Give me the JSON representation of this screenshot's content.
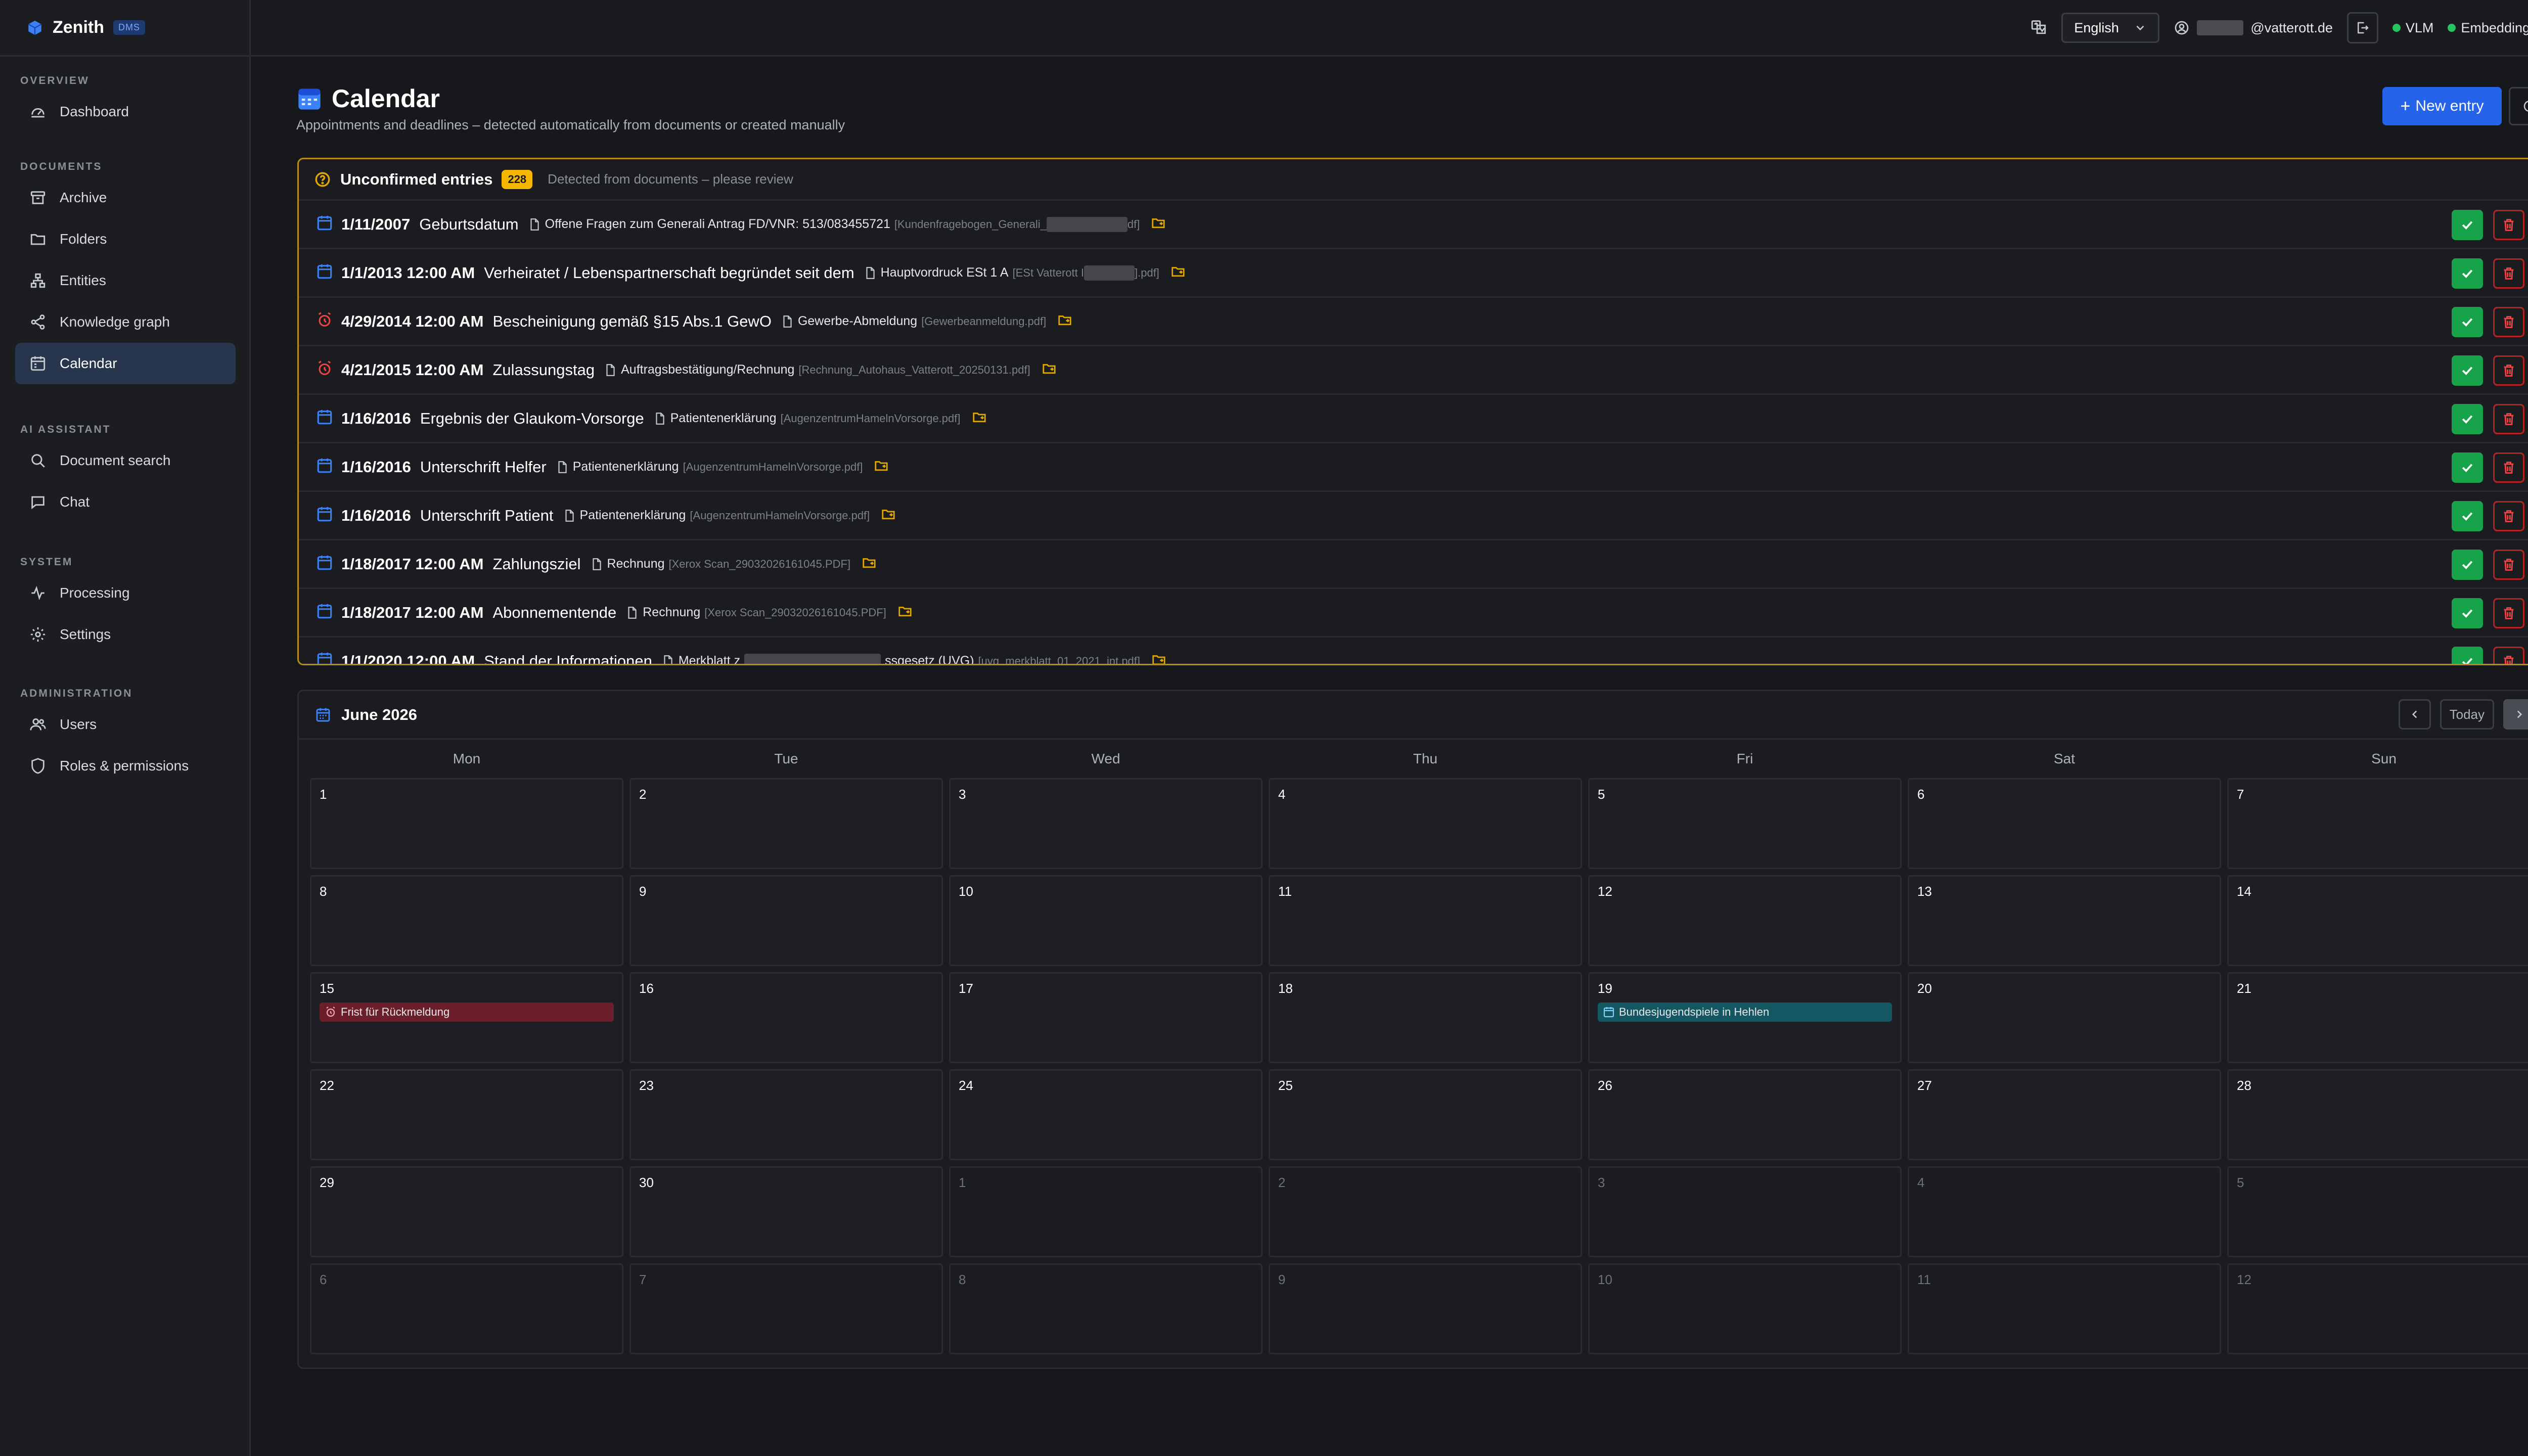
{
  "brand": {
    "name": "Zenith",
    "tag": "DMS"
  },
  "sidebar": {
    "sections": [
      {
        "heading": "OVERVIEW",
        "items": [
          {
            "label": "Dashboard",
            "icon": "dashboard-icon"
          }
        ]
      },
      {
        "heading": "DOCUMENTS",
        "items": [
          {
            "label": "Archive",
            "icon": "archive-icon"
          },
          {
            "label": "Folders",
            "icon": "folder-icon"
          },
          {
            "label": "Entities",
            "icon": "entities-icon"
          },
          {
            "label": "Knowledge graph",
            "icon": "share-icon"
          },
          {
            "label": "Calendar",
            "icon": "calendar-icon",
            "active": true
          }
        ]
      },
      {
        "heading": "AI ASSISTANT",
        "items": [
          {
            "label": "Document search",
            "icon": "search-icon"
          },
          {
            "label": "Chat",
            "icon": "chat-icon"
          }
        ]
      },
      {
        "heading": "SYSTEM",
        "items": [
          {
            "label": "Processing",
            "icon": "activity-icon"
          },
          {
            "label": "Settings",
            "icon": "gear-icon"
          }
        ]
      },
      {
        "heading": "ADMINISTRATION",
        "items": [
          {
            "label": "Users",
            "icon": "users-icon"
          },
          {
            "label": "Roles & permissions",
            "icon": "shield-icon"
          }
        ]
      }
    ]
  },
  "topbar": {
    "language": "English",
    "user_suffix": "@vatterott.de",
    "status": [
      "VLM",
      "Embedding"
    ],
    "status_color": "#22c55e"
  },
  "page": {
    "title": "Calendar",
    "subtitle": "Appointments and deadlines – detected automatically from documents or created manually",
    "new_entry": "New entry"
  },
  "unconfirmed": {
    "title": "Unconfirmed entries",
    "count": "228",
    "hint": "Detected from documents – please review",
    "rows": [
      {
        "icon": "calendar",
        "date": "1/11/2007",
        "label": "Geburtsdatum",
        "doc": "Offene Fragen zum Generali Antrag FD/VNR: 513/083455721",
        "file_a": "[Kundenfragebogen_Generali_",
        "file_b": "df]",
        "mask": 160
      },
      {
        "icon": "calendar",
        "date": "1/1/2013 12:00 AM",
        "label": "Verheiratet / Lebenspartnerschaft begründet seit dem",
        "doc": "Hauptvordruck ESt 1 A",
        "file_a": "[ESt Vatterott I",
        "file_b": "].pdf]",
        "mask": 100
      },
      {
        "icon": "alarm",
        "date": "4/29/2014 12:00 AM",
        "label": "Bescheinigung gemäß §15 Abs.1 GewO",
        "doc": "Gewerbe-Abmeldung",
        "file_a": "[Gewerbeanmeldung.pdf]",
        "file_b": "",
        "mask": 0
      },
      {
        "icon": "alarm",
        "date": "4/21/2015 12:00 AM",
        "label": "Zulassungstag",
        "doc": "Auftragsbestätigung/Rechnung",
        "file_a": "[Rechnung_Autohaus_Vatterott_20250131.pdf]",
        "file_b": "",
        "mask": 0
      },
      {
        "icon": "calendar",
        "date": "1/16/2016",
        "label": "Ergebnis der Glaukom-Vorsorge",
        "doc": "Patientenerklärung",
        "file_a": "[AugenzentrumHamelnVorsorge.pdf]",
        "file_b": "",
        "mask": 0
      },
      {
        "icon": "calendar",
        "date": "1/16/2016",
        "label": "Unterschrift Helfer",
        "doc": "Patientenerklärung",
        "file_a": "[AugenzentrumHamelnVorsorge.pdf]",
        "file_b": "",
        "mask": 0
      },
      {
        "icon": "calendar",
        "date": "1/16/2016",
        "label": "Unterschrift Patient",
        "doc": "Patientenerklärung",
        "file_a": "[AugenzentrumHamelnVorsorge.pdf]",
        "file_b": "",
        "mask": 0
      },
      {
        "icon": "calendar",
        "date": "1/18/2017 12:00 AM",
        "label": "Zahlungsziel",
        "doc": "Rechnung",
        "file_a": "[Xerox Scan_29032026161045.PDF]",
        "file_b": "",
        "mask": 0
      },
      {
        "icon": "calendar",
        "date": "1/18/2017 12:00 AM",
        "label": "Abonnementende",
        "doc": "Rechnung",
        "file_a": "[Xerox Scan_29032026161045.PDF]",
        "file_b": "",
        "mask": 0
      },
      {
        "icon": "calendar",
        "date": "1/1/2020 12:00 AM",
        "label": "Stand der Informationen",
        "doc": "Merkblatt z",
        "doc_b": "ssgesetz (UVG)",
        "file_a": "[uvg_merkblatt_01_2021_int.pdf]",
        "file_b": "",
        "mask": 270
      }
    ]
  },
  "calendar": {
    "title": "June 2026",
    "today": "Today",
    "weekdays": [
      "Mon",
      "Tue",
      "Wed",
      "Thu",
      "Fri",
      "Sat",
      "Sun"
    ],
    "days": [
      {
        "n": "1"
      },
      {
        "n": "2"
      },
      {
        "n": "3"
      },
      {
        "n": "4"
      },
      {
        "n": "5"
      },
      {
        "n": "6"
      },
      {
        "n": "7"
      },
      {
        "n": "8"
      },
      {
        "n": "9"
      },
      {
        "n": "10"
      },
      {
        "n": "11"
      },
      {
        "n": "12"
      },
      {
        "n": "13"
      },
      {
        "n": "14"
      },
      {
        "n": "15",
        "event": {
          "text": "Frist für Rückmeldung",
          "kind": "red"
        }
      },
      {
        "n": "16"
      },
      {
        "n": "17"
      },
      {
        "n": "18"
      },
      {
        "n": "19",
        "event": {
          "text": "Bundesjugendspiele in Hehlen",
          "kind": "teal"
        }
      },
      {
        "n": "20"
      },
      {
        "n": "21"
      },
      {
        "n": "22"
      },
      {
        "n": "23"
      },
      {
        "n": "24"
      },
      {
        "n": "25"
      },
      {
        "n": "26"
      },
      {
        "n": "27"
      },
      {
        "n": "28"
      },
      {
        "n": "29"
      },
      {
        "n": "30"
      },
      {
        "n": "1",
        "out": true
      },
      {
        "n": "2",
        "out": true
      },
      {
        "n": "3",
        "out": true
      },
      {
        "n": "4",
        "out": true
      },
      {
        "n": "5",
        "out": true
      },
      {
        "n": "6",
        "out": true
      },
      {
        "n": "7",
        "out": true
      },
      {
        "n": "8",
        "out": true
      },
      {
        "n": "9",
        "out": true
      },
      {
        "n": "10",
        "out": true
      },
      {
        "n": "11",
        "out": true
      },
      {
        "n": "12",
        "out": true
      }
    ]
  }
}
